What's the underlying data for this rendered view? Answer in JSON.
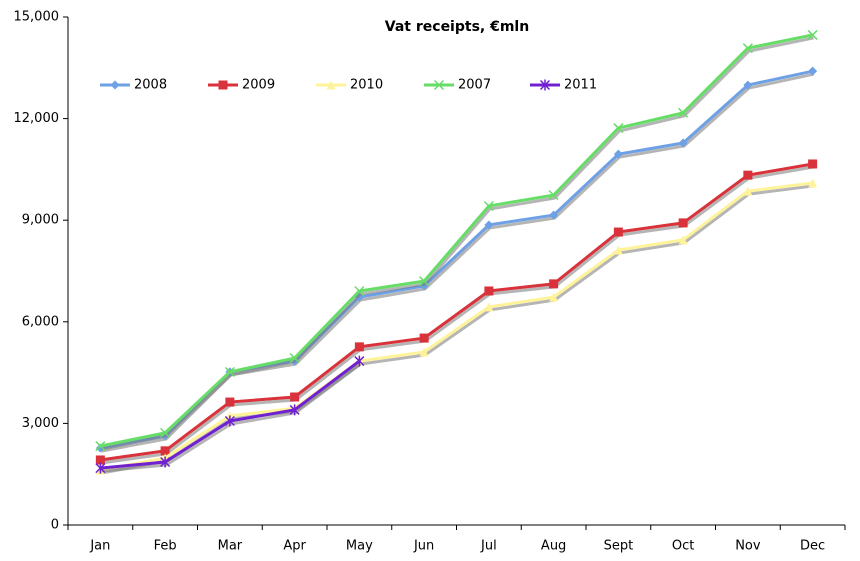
{
  "chart_data": {
    "type": "line",
    "title": "Vat receipts, €mln",
    "categories": [
      "Jan",
      "Feb",
      "Mar",
      "Apr",
      "May",
      "Jun",
      "Jul",
      "Aug",
      "Sept",
      "Oct",
      "Nov",
      "Dec"
    ],
    "series": [
      {
        "name": "2008",
        "color": "#6ea0e6",
        "marker": "diamond",
        "values": [
          2270,
          2630,
          4520,
          4840,
          6730,
          7060,
          8860,
          9150,
          10950,
          11280,
          12990,
          13400
        ]
      },
      {
        "name": "2009",
        "color": "#d9323a",
        "marker": "square",
        "values": [
          1920,
          2190,
          3630,
          3780,
          5260,
          5520,
          6910,
          7120,
          8650,
          8920,
          10330,
          10660
        ]
      },
      {
        "name": "2010",
        "color": "#fff39a",
        "marker": "triangle",
        "values": [
          1620,
          1980,
          3220,
          3450,
          4840,
          5110,
          6440,
          6730,
          8120,
          8420,
          9860,
          10100
        ]
      },
      {
        "name": "2007",
        "color": "#66dd66",
        "marker": "x",
        "values": [
          2330,
          2720,
          4520,
          4930,
          6910,
          7200,
          9420,
          9740,
          11720,
          12170,
          14080,
          14470
        ]
      },
      {
        "name": "2011",
        "color": "#7020d0",
        "marker": "asterisk",
        "values": [
          1680,
          1860,
          3070,
          3400,
          4840,
          null,
          null,
          null,
          null,
          null,
          null,
          null
        ]
      }
    ],
    "ylim": [
      0,
      15000
    ],
    "yticks": [
      0,
      {
        "value": 3000,
        "label": "3,000"
      },
      {
        "value": 6000,
        "label": "6,000"
      },
      {
        "value": 9000,
        "label": "9,000"
      },
      {
        "value": 12000,
        "label": "12,000"
      },
      {
        "value": 15000,
        "label": "15,000"
      }
    ],
    "grid": false,
    "legend": "top-left"
  }
}
